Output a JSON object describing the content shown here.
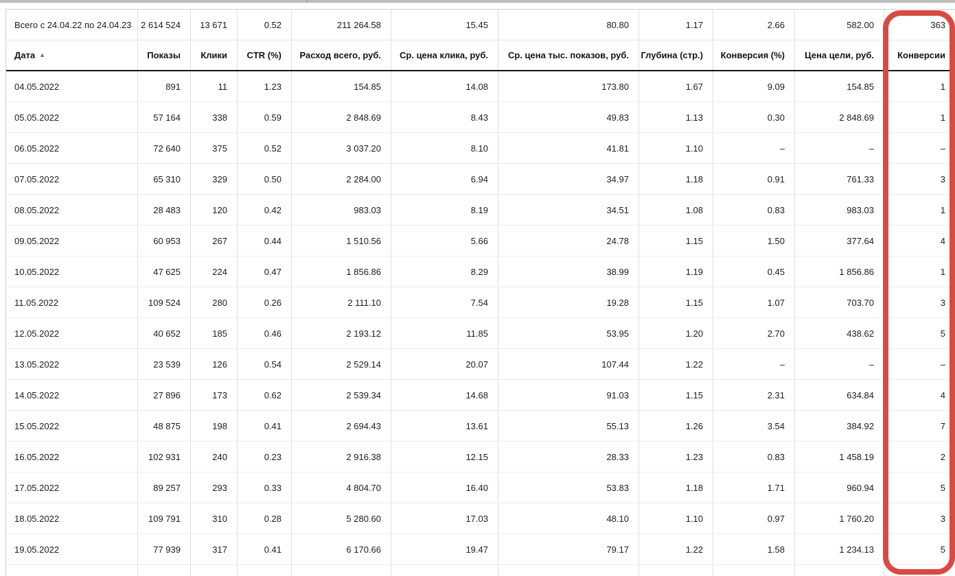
{
  "window": {
    "top_strip_color": "#bcbcbc"
  },
  "report": {
    "totals": {
      "label": "Всего с 24.04.22 по 24.04.23",
      "values": [
        "2 614 524",
        "13 671",
        "0.52",
        "211 264.58",
        "15.45",
        "80.80",
        "1.17",
        "2.66",
        "582.00",
        "363"
      ]
    },
    "columns": [
      {
        "label": "Дата",
        "sort": "asc",
        "sort_icon": "▲",
        "align": "left"
      },
      {
        "label": "Показы"
      },
      {
        "label": "Клики"
      },
      {
        "label": "CTR (%)"
      },
      {
        "label": "Расход всего, руб."
      },
      {
        "label": "Ср. цена клика, руб."
      },
      {
        "label": "Ср. цена тыс. показов, руб."
      },
      {
        "label": "Глубина (стр.)"
      },
      {
        "label": "Конверсия (%)"
      },
      {
        "label": "Цена цели, руб."
      },
      {
        "label": "Конверсии",
        "highlighted": true
      }
    ],
    "rows": [
      [
        "04.05.2022",
        "891",
        "11",
        "1.23",
        "154.85",
        "14.08",
        "173.80",
        "1.67",
        "9.09",
        "154.85",
        "1"
      ],
      [
        "05.05.2022",
        "57 164",
        "338",
        "0.59",
        "2 848.69",
        "8.43",
        "49.83",
        "1.13",
        "0.30",
        "2 848.69",
        "1"
      ],
      [
        "06.05.2022",
        "72 640",
        "375",
        "0.52",
        "3 037.20",
        "8.10",
        "41.81",
        "1.10",
        "–",
        "–",
        "–"
      ],
      [
        "07.05.2022",
        "65 310",
        "329",
        "0.50",
        "2 284.00",
        "6.94",
        "34.97",
        "1.18",
        "0.91",
        "761.33",
        "3"
      ],
      [
        "08.05.2022",
        "28 483",
        "120",
        "0.42",
        "983.03",
        "8.19",
        "34.51",
        "1.08",
        "0.83",
        "983.03",
        "1"
      ],
      [
        "09.05.2022",
        "60 953",
        "267",
        "0.44",
        "1 510.56",
        "5.66",
        "24.78",
        "1.15",
        "1.50",
        "377.64",
        "4"
      ],
      [
        "10.05.2022",
        "47 625",
        "224",
        "0.47",
        "1 856.86",
        "8.29",
        "38.99",
        "1.19",
        "0.45",
        "1 856.86",
        "1"
      ],
      [
        "11.05.2022",
        "109 524",
        "280",
        "0.26",
        "2 111.10",
        "7.54",
        "19.28",
        "1.15",
        "1.07",
        "703.70",
        "3"
      ],
      [
        "12.05.2022",
        "40 652",
        "185",
        "0.46",
        "2 193.12",
        "11.85",
        "53.95",
        "1.20",
        "2.70",
        "438.62",
        "5"
      ],
      [
        "13.05.2022",
        "23 539",
        "126",
        "0.54",
        "2 529.14",
        "20.07",
        "107.44",
        "1.22",
        "–",
        "–",
        "–"
      ],
      [
        "14.05.2022",
        "27 896",
        "173",
        "0.62",
        "2 539.34",
        "14.68",
        "91.03",
        "1.15",
        "2.31",
        "634.84",
        "4"
      ],
      [
        "15.05.2022",
        "48 875",
        "198",
        "0.41",
        "2 694.43",
        "13.61",
        "55.13",
        "1.26",
        "3.54",
        "384.92",
        "7"
      ],
      [
        "16.05.2022",
        "102 931",
        "240",
        "0.23",
        "2 916.38",
        "12.15",
        "28.33",
        "1.23",
        "0.83",
        "1 458.19",
        "2"
      ],
      [
        "17.05.2022",
        "89 257",
        "293",
        "0.33",
        "4 804.70",
        "16.40",
        "53.83",
        "1.18",
        "1.71",
        "960.94",
        "5"
      ],
      [
        "18.05.2022",
        "109 791",
        "310",
        "0.28",
        "5 280.60",
        "17.03",
        "48.10",
        "1.10",
        "0.97",
        "1 760.20",
        "3"
      ],
      [
        "19.05.2022",
        "77 939",
        "317",
        "0.41",
        "6 170.66",
        "19.47",
        "79.17",
        "1.22",
        "1.58",
        "1 234.13",
        "5"
      ]
    ]
  },
  "annotation": {
    "shape": "rounded-rectangle",
    "column": "Конверсии",
    "color": "#d84a42"
  }
}
